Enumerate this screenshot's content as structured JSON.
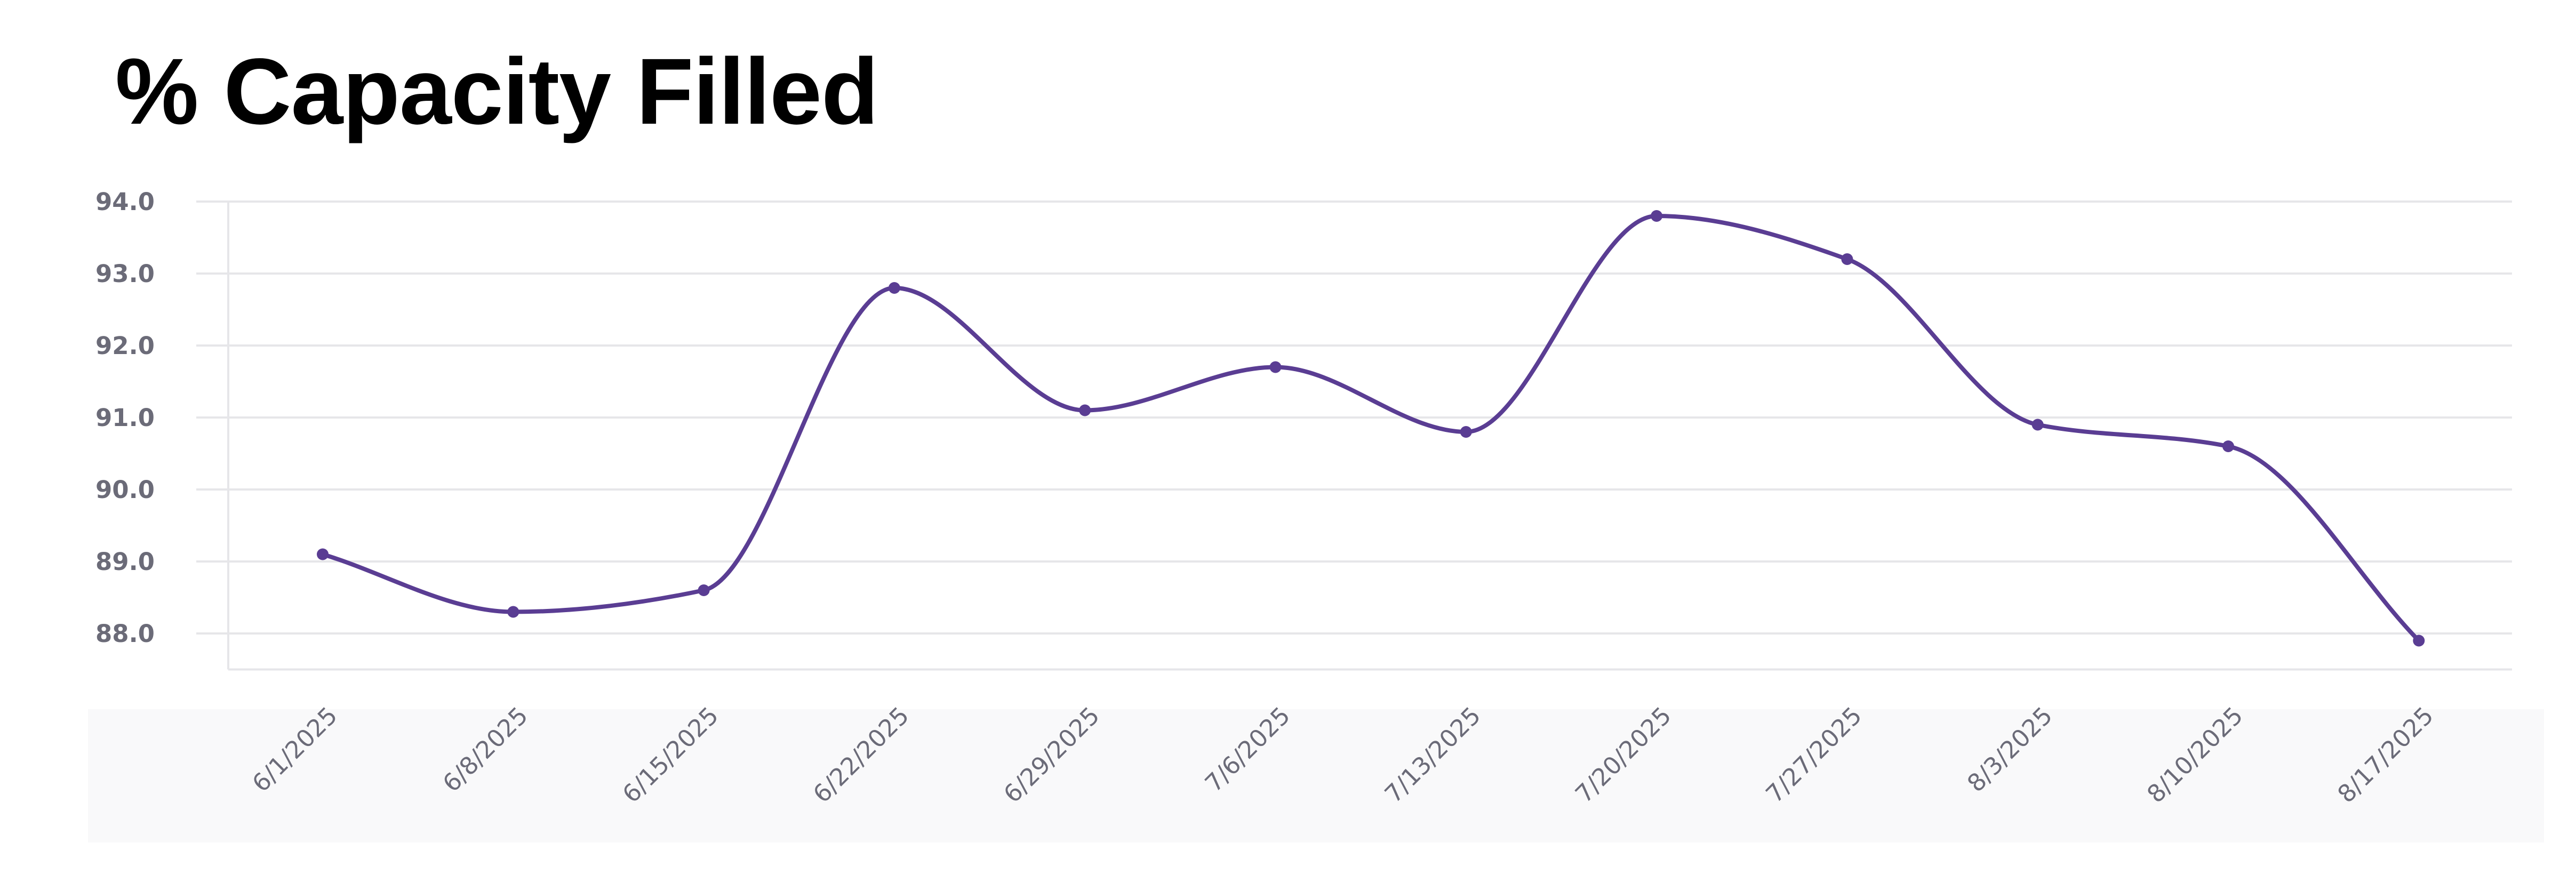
{
  "chart_data": {
    "type": "line",
    "title": "% Capacity Filled",
    "xlabel": "",
    "ylabel": "",
    "x": [
      "6/1/2025",
      "6/8/2025",
      "6/15/2025",
      "6/22/2025",
      "6/29/2025",
      "7/6/2025",
      "7/13/2025",
      "7/20/2025",
      "7/27/2025",
      "8/3/2025",
      "8/10/2025",
      "8/17/2025"
    ],
    "series": [
      {
        "values": [
          89.1,
          88.3,
          88.6,
          92.8,
          91.1,
          91.7,
          90.8,
          93.8,
          93.2,
          90.9,
          90.6,
          87.9
        ]
      }
    ],
    "y_ticks": [
      "88.0",
      "89.0",
      "90.0",
      "91.0",
      "92.0",
      "93.0",
      "94.0"
    ],
    "ylim": [
      87.5,
      94.0
    ],
    "grid": true,
    "legend": "none",
    "colors": {
      "line": "#5a3d93",
      "grid": "#e6e6e9",
      "axis_text": "#6b6b78",
      "band": "#f9f9fa"
    }
  }
}
